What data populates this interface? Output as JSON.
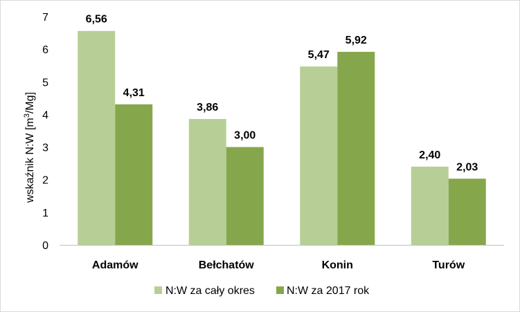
{
  "chart_data": {
    "type": "bar",
    "categories": [
      "Adamów",
      "Bełchatów",
      "Konin",
      "Turów"
    ],
    "series": [
      {
        "name": "N:W za cały okres",
        "values": [
          6.56,
          3.86,
          5.47,
          2.4
        ],
        "labels": [
          "6,56",
          "3,86",
          "5,47",
          "2,40"
        ],
        "color": "#b7cf96"
      },
      {
        "name": "N:W za 2017 rok",
        "values": [
          4.31,
          3.0,
          5.92,
          2.03
        ],
        "labels": [
          "4,31",
          "3,00",
          "5,92",
          "2,03"
        ],
        "color": "#86a64c"
      }
    ],
    "ylabel_parts": {
      "pre": "wskaźnik N:W [m",
      "sup": "3",
      "post": "/Mg]"
    },
    "ylim": [
      0,
      7
    ],
    "yticks": [
      0,
      1,
      2,
      3,
      4,
      5,
      6,
      7
    ],
    "grid": false,
    "legend_position": "bottom"
  }
}
